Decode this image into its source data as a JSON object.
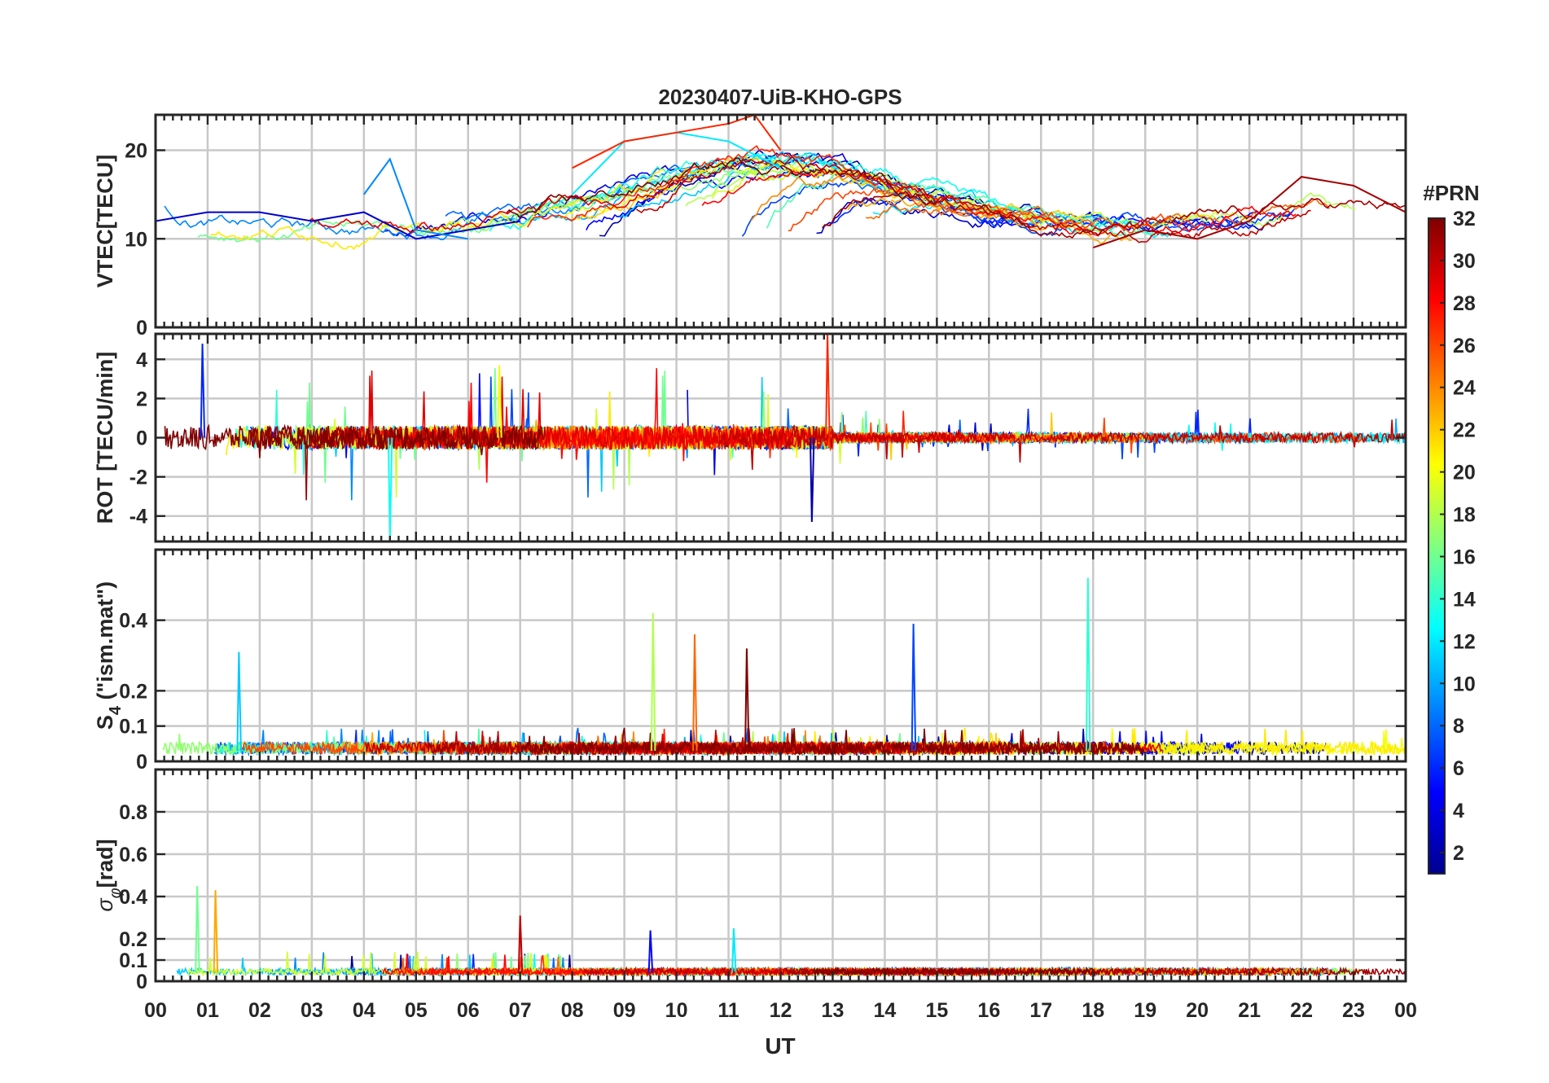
{
  "figure": {
    "title": "20230407-UiB-KHO-GPS",
    "xlabel": "UT",
    "x_tick_labels": [
      "00",
      "01",
      "02",
      "03",
      "04",
      "05",
      "06",
      "07",
      "08",
      "09",
      "10",
      "11",
      "12",
      "13",
      "14",
      "15",
      "16",
      "17",
      "18",
      "19",
      "20",
      "21",
      "22",
      "23",
      "00"
    ],
    "colorbar": {
      "title": "#PRN",
      "range": [
        1,
        32
      ],
      "tick_values": [
        2,
        4,
        6,
        8,
        10,
        12,
        14,
        16,
        18,
        20,
        22,
        24,
        26,
        28,
        30,
        32
      ],
      "colormap": "jet",
      "colors": [
        "#00008f",
        "#0000ff",
        "#0080ff",
        "#00ffff",
        "#80ff80",
        "#ffff00",
        "#ff8000",
        "#ff0000",
        "#800000"
      ]
    }
  },
  "chart_data": [
    {
      "type": "line",
      "panel": "VTEC",
      "ylabel": "VTEC[TECU]",
      "xlim": [
        0,
        24
      ],
      "ylim": [
        0,
        24
      ],
      "yticks": [
        0,
        10,
        20
      ],
      "grid": true,
      "series_count": 32,
      "x_unit": "hours UT",
      "series_summary": [
        {
          "prn": 3,
          "x": [
            0,
            1,
            2,
            3,
            4,
            5,
            6,
            7
          ],
          "y": [
            12,
            13,
            13,
            12,
            13,
            10,
            11,
            12
          ]
        },
        {
          "prn": 9,
          "x": [
            4,
            4.5,
            5,
            6
          ],
          "y": [
            15,
            19,
            11,
            10
          ]
        },
        {
          "prn": 12,
          "x": [
            8,
            9,
            10,
            11,
            12
          ],
          "y": [
            15,
            21,
            22,
            21,
            18
          ]
        },
        {
          "prn": 27,
          "x": [
            8,
            9,
            10,
            11,
            11.5,
            12
          ],
          "y": [
            18,
            21,
            22,
            23,
            24,
            20
          ]
        },
        {
          "prn": 31,
          "x": [
            18,
            19,
            20,
            21,
            22,
            23,
            24
          ],
          "y": [
            9,
            11,
            10,
            12,
            17,
            16,
            13
          ]
        }
      ]
    },
    {
      "type": "line",
      "panel": "ROT",
      "ylabel": "ROT [TECU/min]",
      "xlim": [
        0,
        24
      ],
      "ylim": [
        -5.3,
        5.3
      ],
      "yticks": [
        -4,
        -2,
        0,
        2,
        4
      ],
      "grid": true,
      "series_count": 32,
      "notable_values": [
        {
          "x": 0.9,
          "y": 4.8
        },
        {
          "x": 4.5,
          "y": -5.2
        },
        {
          "x": 6.6,
          "y": 3.7
        },
        {
          "x": 12.9,
          "y": 5.3
        },
        {
          "x": 12.6,
          "y": -4.3
        }
      ]
    },
    {
      "type": "line",
      "panel": "S4",
      "ylabel": "S4 (\"ism.mat\")",
      "ylabel_main": "S",
      "ylabel_sub": "4",
      "ylabel_rest": " (\"ism.mat\")",
      "xlim": [
        0,
        24
      ],
      "ylim": [
        0,
        0.6
      ],
      "yticks": [
        0,
        0.1,
        0.2,
        0.4
      ],
      "grid": true,
      "series_count": 32,
      "notable_values": [
        {
          "x": 1.6,
          "y": 0.31
        },
        {
          "x": 9.55,
          "y": 0.42
        },
        {
          "x": 10.35,
          "y": 0.36
        },
        {
          "x": 11.35,
          "y": 0.32
        },
        {
          "x": 14.55,
          "y": 0.39
        },
        {
          "x": 17.9,
          "y": 0.52
        }
      ]
    },
    {
      "type": "line",
      "panel": "sigma_phi",
      "ylabel": "σφ[rad]",
      "ylabel_main": "σ",
      "ylabel_sub": "φ",
      "ylabel_rest": "[rad]",
      "xlim": [
        0,
        24
      ],
      "ylim": [
        0,
        1
      ],
      "yticks": [
        0,
        0.1,
        0.2,
        0.4,
        0.6,
        0.8
      ],
      "grid": true,
      "series_count": 32,
      "notable_values": [
        {
          "x": 0.8,
          "y": 0.45
        },
        {
          "x": 1.15,
          "y": 0.43
        },
        {
          "x": 7.0,
          "y": 0.31
        },
        {
          "x": 9.5,
          "y": 0.24
        },
        {
          "x": 11.1,
          "y": 0.25
        }
      ]
    }
  ]
}
